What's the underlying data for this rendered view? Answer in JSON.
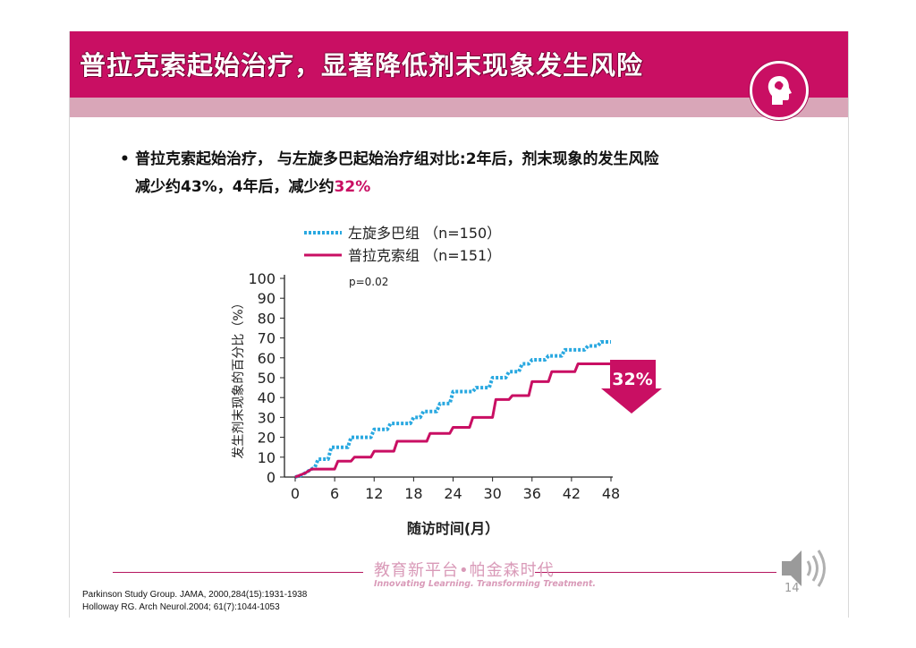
{
  "slide": {
    "title": "普拉克索起始治疗，显著降低剂末现象发生风险",
    "bullet": {
      "marker": "•",
      "line1": "普拉克索起始治疗， 与左旋多巴起始治疗组对比:2年后，剂末现象的发生风险",
      "line2_prefix": "减少约43%，4年后，减少约",
      "line2_highlight": "32%"
    },
    "brand_cn": "教育新平台•帕金森时代",
    "brand_en": "Innovating Learning. Transforming Treatment.",
    "page_number": "14",
    "references": [
      "Parkinson Study Group. JAMA, 2000,284(15):1931-1938",
      "Holloway RG. Arch Neurol.2004; 61(7):1044-1053"
    ],
    "colors": {
      "brand": "#c90f63",
      "band": "#d9a6b8",
      "levodopa": "#29a8e0",
      "pramipexole": "#c90f63"
    },
    "icons": [
      "head-profile-icon",
      "speaker-icon"
    ]
  },
  "chart_data": {
    "type": "line",
    "xlabel": "随访时间(月）",
    "ylabel": "发生剂末现象的百分比（%）",
    "xticks": [
      0,
      6,
      12,
      18,
      24,
      30,
      36,
      42,
      48
    ],
    "yticks": [
      0,
      10,
      20,
      30,
      40,
      50,
      60,
      70,
      80,
      90,
      100
    ],
    "xlim": [
      0,
      48
    ],
    "ylim": [
      0,
      100
    ],
    "annotation": "p=0.02",
    "callout": "32%",
    "legend_position": "top",
    "series": [
      {
        "name": "左旋多巴组 （n=150）",
        "style": "dotted",
        "color": "#29a8e0",
        "points": [
          [
            0,
            0
          ],
          [
            1,
            1
          ],
          [
            2,
            3
          ],
          [
            3,
            5
          ],
          [
            3.5,
            9
          ],
          [
            5,
            9
          ],
          [
            5.5,
            15
          ],
          [
            8,
            15
          ],
          [
            8.5,
            20
          ],
          [
            11.5,
            20
          ],
          [
            12,
            24
          ],
          [
            14,
            24
          ],
          [
            14.5,
            27
          ],
          [
            17.5,
            27
          ],
          [
            18,
            30
          ],
          [
            19,
            30
          ],
          [
            19.5,
            33
          ],
          [
            21.5,
            33
          ],
          [
            22,
            37
          ],
          [
            23.5,
            37
          ],
          [
            24,
            43
          ],
          [
            27,
            43
          ],
          [
            27.5,
            45
          ],
          [
            29.5,
            45
          ],
          [
            30,
            50
          ],
          [
            32,
            50
          ],
          [
            32.5,
            53
          ],
          [
            34,
            53
          ],
          [
            34.5,
            57
          ],
          [
            35.5,
            57
          ],
          [
            36,
            59
          ],
          [
            38,
            59
          ],
          [
            38.5,
            61
          ],
          [
            40.5,
            61
          ],
          [
            41,
            64
          ],
          [
            44,
            64
          ],
          [
            44.5,
            66
          ],
          [
            46,
            66
          ],
          [
            46.5,
            68
          ],
          [
            48,
            68
          ]
        ]
      },
      {
        "name": "普拉克索组 （n=151）",
        "style": "solid",
        "color": "#c90f63",
        "points": [
          [
            0,
            0
          ],
          [
            1.5,
            2
          ],
          [
            2.5,
            4
          ],
          [
            6,
            4
          ],
          [
            6.5,
            8
          ],
          [
            8.5,
            8
          ],
          [
            9,
            10
          ],
          [
            11.5,
            10
          ],
          [
            12,
            13
          ],
          [
            15,
            13
          ],
          [
            15.5,
            18
          ],
          [
            20,
            18
          ],
          [
            20.5,
            22
          ],
          [
            23.5,
            22
          ],
          [
            24,
            25
          ],
          [
            26.5,
            25
          ],
          [
            27,
            30
          ],
          [
            30,
            30
          ],
          [
            30.5,
            39
          ],
          [
            32.5,
            39
          ],
          [
            33,
            41
          ],
          [
            35.5,
            41
          ],
          [
            36,
            48
          ],
          [
            38.5,
            48
          ],
          [
            39,
            53
          ],
          [
            42.5,
            53
          ],
          [
            43,
            57
          ],
          [
            48,
            57
          ]
        ]
      }
    ]
  }
}
